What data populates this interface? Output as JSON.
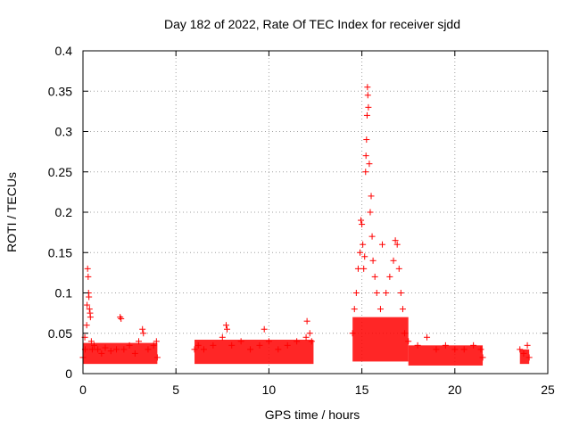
{
  "chart_data": {
    "type": "scatter",
    "title": "Day 182 of 2022, Rate Of TEC Index for receiver sjdd",
    "xlabel": "GPS time / hours",
    "ylabel": "ROTI / TECUs",
    "xlim": [
      0,
      25
    ],
    "ylim": [
      0,
      0.4
    ],
    "xticks": [
      "0",
      "5",
      "10",
      "15",
      "20",
      "25"
    ],
    "yticks": [
      "0",
      "0.05",
      "0.1",
      "0.15",
      "0.2",
      "0.25",
      "0.3",
      "0.35",
      "0.4"
    ],
    "grid": true,
    "marker": "+",
    "series_color": "#ff0000",
    "points": [
      [
        0.0,
        0.02
      ],
      [
        0.1,
        0.045
      ],
      [
        0.12,
        0.03
      ],
      [
        0.2,
        0.06
      ],
      [
        0.22,
        0.085
      ],
      [
        0.25,
        0.13
      ],
      [
        0.28,
        0.12
      ],
      [
        0.3,
        0.1
      ],
      [
        0.32,
        0.095
      ],
      [
        0.35,
        0.08
      ],
      [
        0.38,
        0.075
      ],
      [
        0.4,
        0.07
      ],
      [
        0.45,
        0.04
      ],
      [
        0.5,
        0.03
      ],
      [
        0.6,
        0.035
      ],
      [
        0.8,
        0.03
      ],
      [
        1.0,
        0.025
      ],
      [
        1.2,
        0.032
      ],
      [
        1.5,
        0.028
      ],
      [
        1.8,
        0.03
      ],
      [
        2.0,
        0.07
      ],
      [
        2.05,
        0.068
      ],
      [
        2.2,
        0.03
      ],
      [
        2.5,
        0.035
      ],
      [
        2.8,
        0.025
      ],
      [
        3.0,
        0.04
      ],
      [
        3.2,
        0.055
      ],
      [
        3.25,
        0.05
      ],
      [
        3.5,
        0.03
      ],
      [
        3.8,
        0.035
      ],
      [
        3.95,
        0.04
      ],
      [
        4.0,
        0.02
      ],
      [
        6.0,
        0.03
      ],
      [
        6.2,
        0.035
      ],
      [
        6.5,
        0.03
      ],
      [
        7.0,
        0.035
      ],
      [
        7.5,
        0.045
      ],
      [
        7.7,
        0.06
      ],
      [
        7.75,
        0.055
      ],
      [
        8.0,
        0.035
      ],
      [
        8.5,
        0.04
      ],
      [
        9.0,
        0.03
      ],
      [
        9.5,
        0.035
      ],
      [
        9.75,
        0.055
      ],
      [
        10.0,
        0.04
      ],
      [
        10.5,
        0.03
      ],
      [
        11.0,
        0.035
      ],
      [
        11.5,
        0.04
      ],
      [
        12.0,
        0.045
      ],
      [
        12.05,
        0.065
      ],
      [
        12.2,
        0.05
      ],
      [
        12.3,
        0.04
      ],
      [
        14.5,
        0.05
      ],
      [
        14.6,
        0.08
      ],
      [
        14.7,
        0.1
      ],
      [
        14.8,
        0.13
      ],
      [
        14.9,
        0.15
      ],
      [
        14.95,
        0.19
      ],
      [
        15.0,
        0.185
      ],
      [
        15.05,
        0.16
      ],
      [
        15.1,
        0.13
      ],
      [
        15.15,
        0.145
      ],
      [
        15.2,
        0.25
      ],
      [
        15.22,
        0.27
      ],
      [
        15.25,
        0.29
      ],
      [
        15.28,
        0.32
      ],
      [
        15.3,
        0.355
      ],
      [
        15.32,
        0.345
      ],
      [
        15.35,
        0.33
      ],
      [
        15.4,
        0.26
      ],
      [
        15.45,
        0.2
      ],
      [
        15.5,
        0.22
      ],
      [
        15.55,
        0.17
      ],
      [
        15.6,
        0.14
      ],
      [
        15.7,
        0.12
      ],
      [
        15.8,
        0.1
      ],
      [
        16.0,
        0.08
      ],
      [
        16.1,
        0.16
      ],
      [
        16.3,
        0.1
      ],
      [
        16.5,
        0.12
      ],
      [
        16.7,
        0.14
      ],
      [
        16.8,
        0.165
      ],
      [
        16.9,
        0.16
      ],
      [
        17.0,
        0.13
      ],
      [
        17.1,
        0.1
      ],
      [
        17.2,
        0.08
      ],
      [
        17.3,
        0.05
      ],
      [
        17.5,
        0.04
      ],
      [
        18.0,
        0.035
      ],
      [
        18.5,
        0.045
      ],
      [
        19.0,
        0.03
      ],
      [
        19.5,
        0.035
      ],
      [
        20.0,
        0.03
      ],
      [
        20.5,
        0.03
      ],
      [
        21.0,
        0.035
      ],
      [
        21.4,
        0.03
      ],
      [
        21.5,
        0.02
      ],
      [
        23.5,
        0.03
      ],
      [
        23.7,
        0.025
      ],
      [
        23.9,
        0.035
      ],
      [
        24.0,
        0.02
      ]
    ],
    "bands": [
      {
        "x": [
          0.0,
          4.0
        ],
        "y": [
          0.012,
          0.038
        ]
      },
      {
        "x": [
          6.0,
          12.4
        ],
        "y": [
          0.012,
          0.042
        ]
      },
      {
        "x": [
          14.5,
          17.5
        ],
        "y": [
          0.015,
          0.07
        ]
      },
      {
        "x": [
          17.5,
          21.5
        ],
        "y": [
          0.01,
          0.035
        ]
      },
      {
        "x": [
          23.5,
          24.0
        ],
        "y": [
          0.012,
          0.03
        ]
      }
    ]
  }
}
